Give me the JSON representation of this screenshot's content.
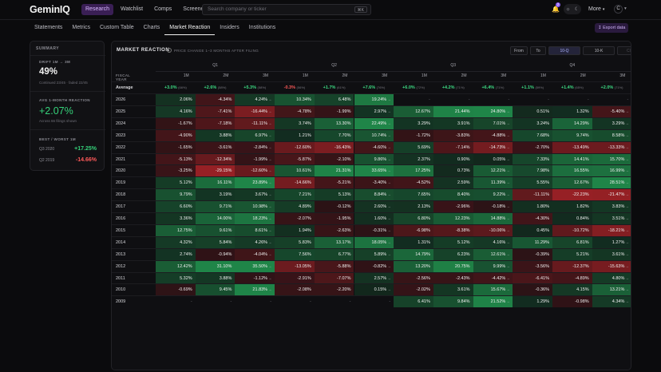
{
  "brand": {
    "name": "GeminIQ"
  },
  "nav": {
    "items": [
      {
        "label": "Research",
        "active": true
      },
      {
        "label": "Watchlist",
        "active": false
      },
      {
        "label": "Comps",
        "active": false
      },
      {
        "label": "Screener",
        "active": false
      }
    ]
  },
  "search": {
    "placeholder": "Search company or ticker",
    "shortcut": "⌘K"
  },
  "header": {
    "notif_count": "2",
    "more_label": "More",
    "avatar": "C"
  },
  "subtabs": [
    {
      "label": "Statements",
      "active": false
    },
    {
      "label": "Metrics",
      "active": false
    },
    {
      "label": "Custom Table",
      "active": false
    },
    {
      "label": "Charts",
      "active": false
    },
    {
      "label": "Market Reaction",
      "active": true
    },
    {
      "label": "Insiders",
      "active": false
    },
    {
      "label": "Institutions",
      "active": false
    }
  ],
  "export_label": "Export data",
  "summary": {
    "title": "SUMMARY",
    "drift_label": "DRIFT 1M → 3M",
    "drift_value": "49%",
    "drift_note": "Continued 23/45 · faded 22/45",
    "avg_label": "AVG 1-MONTH REACTION",
    "avg_value": "+2.07%",
    "avg_note": "Across 66 filings shown",
    "bw_label": "BEST / WORST 1M",
    "best_period": "Q3 2020",
    "best_value": "+17.25%",
    "worst_period": "Q2 2019",
    "worst_value": "-14.66%"
  },
  "panel": {
    "title": "MARKET REACTION",
    "subtitle": "PRICE CHANGE 1–3 MONTHS AFTER FILING",
    "controls": [
      {
        "label": "From",
        "state": "normal"
      },
      {
        "label": "To",
        "state": "normal"
      },
      {
        "label": "10-Q",
        "state": "on"
      },
      {
        "label": "10-K",
        "state": "normal"
      },
      {
        "label": "Clear",
        "state": "dim"
      }
    ],
    "fiscal_year_label": "FISCAL YEAR",
    "quarters": [
      "Q1",
      "Q2",
      "Q3",
      "Q4"
    ],
    "months": [
      "1M",
      "2M",
      "3M"
    ],
    "average": {
      "label": "Average",
      "values": [
        {
          "v": "+3.0%",
          "n": "(66%)",
          "c": "#3ddc84"
        },
        {
          "v": "+2.6%",
          "n": "(58%)",
          "c": "#3ddc84"
        },
        {
          "v": "+5.3%",
          "n": "(58%)",
          "c": "#3ddc84"
        },
        {
          "v": "-0.3%",
          "n": "(56%)",
          "c": "#ff5a5a"
        },
        {
          "v": "+1.7%",
          "n": "(61%)",
          "c": "#3ddc84"
        },
        {
          "v": "+7.6%",
          "n": "(76%)",
          "c": "#3ddc84"
        },
        {
          "v": "+6.0%",
          "n": "(72%)",
          "c": "#3ddc84"
        },
        {
          "v": "+4.2%",
          "n": "(71%)",
          "c": "#3ddc84"
        },
        {
          "v": "+6.4%",
          "n": "(71%)",
          "c": "#3ddc84"
        },
        {
          "v": "+1.1%",
          "n": "(59%)",
          "c": "#3ddc84"
        },
        {
          "v": "+1.4%",
          "n": "(65%)",
          "c": "#3ddc84"
        },
        {
          "v": "+2.0%",
          "n": "(71%)",
          "c": "#3ddc84"
        }
      ]
    },
    "rows": [
      {
        "year": "2026",
        "cells": [
          "2.06%",
          "-4.34%",
          "4.24%",
          "10.34%",
          "6.48%",
          "19.24%",
          "-",
          "-",
          "-",
          "-",
          "-",
          "-"
        ]
      },
      {
        "year": "2025",
        "cells": [
          "4.16%",
          "-7.41%",
          "-16.44%",
          "-4.78%",
          "-1.99%",
          "2.97%",
          "12.67%",
          "21.44%",
          "24.80%",
          "0.51%",
          "1.32%",
          "-5.40%"
        ]
      },
      {
        "year": "2024",
        "cells": [
          "-1.67%",
          "-7.18%",
          "-11.11%",
          "3.74%",
          "13.30%",
          "22.49%",
          "3.29%",
          "3.91%",
          "7.01%",
          "3.24%",
          "14.29%",
          "3.29%"
        ]
      },
      {
        "year": "2023",
        "cells": [
          "-4.90%",
          "3.88%",
          "6.97%",
          "1.21%",
          "7.70%",
          "10.74%",
          "-1.72%",
          "-3.83%",
          "-4.88%",
          "7.68%",
          "9.74%",
          "8.58%"
        ]
      },
      {
        "year": "2022",
        "cells": [
          "-1.65%",
          "-3.61%",
          "-2.84%",
          "-12.60%",
          "-16.43%",
          "-4.60%",
          "5.69%",
          "-7.14%",
          "-14.73%",
          "-2.70%",
          "-13.49%",
          "-13.33%"
        ]
      },
      {
        "year": "2021",
        "cells": [
          "-5.13%",
          "-12.34%",
          "-1.99%",
          "-5.87%",
          "-2.10%",
          "9.86%",
          "2.37%",
          "0.90%",
          "0.05%",
          "7.33%",
          "14.41%",
          "15.70%"
        ]
      },
      {
        "year": "2020",
        "cells": [
          "-3.25%",
          "-29.15%",
          "-12.60%",
          "10.61%",
          "21.31%",
          "33.65%",
          "17.25%",
          "0.73%",
          "12.21%",
          "7.98%",
          "16.55%",
          "16.99%"
        ]
      },
      {
        "year": "2019",
        "cells": [
          "5.12%",
          "16.11%",
          "23.89%",
          "-14.66%",
          "-5.21%",
          "-3.40%",
          "-4.52%",
          "2.59%",
          "11.39%",
          "5.55%",
          "12.67%",
          "28.51%"
        ]
      },
      {
        "year": "2018",
        "cells": [
          "9.79%",
          "3.19%",
          "3.67%",
          "7.21%",
          "5.13%",
          "8.84%",
          "7.65%",
          "8.40%",
          "9.22%",
          "-11.11%",
          "-22.23%",
          "-21.47%"
        ]
      },
      {
        "year": "2017",
        "cells": [
          "6.60%",
          "9.71%",
          "10.98%",
          "4.89%",
          "-0.12%",
          "2.60%",
          "2.13%",
          "-2.96%",
          "-0.18%",
          "1.80%",
          "1.82%",
          "3.83%"
        ]
      },
      {
        "year": "2016",
        "cells": [
          "3.36%",
          "14.00%",
          "18.23%",
          "-2.07%",
          "-1.95%",
          "1.60%",
          "6.80%",
          "12.23%",
          "14.88%",
          "-4.30%",
          "0.84%",
          "3.51%"
        ]
      },
      {
        "year": "2015",
        "cells": [
          "12.75%",
          "9.61%",
          "8.61%",
          "1.94%",
          "-2.63%",
          "-0.31%",
          "-6.98%",
          "-8.38%",
          "-10.06%",
          "0.45%",
          "-10.72%",
          "-18.21%"
        ]
      },
      {
        "year": "2014",
        "cells": [
          "4.32%",
          "5.84%",
          "4.26%",
          "5.83%",
          "13.17%",
          "18.05%",
          "1.31%",
          "5.12%",
          "4.16%",
          "11.29%",
          "6.81%",
          "1.27%"
        ]
      },
      {
        "year": "2013",
        "cells": [
          "2.74%",
          "-0.94%",
          "-4.04%",
          "7.56%",
          "6.77%",
          "5.89%",
          "14.79%",
          "6.23%",
          "12.61%",
          "-0.39%",
          "5.21%",
          "3.61%"
        ]
      },
      {
        "year": "2012",
        "cells": [
          "12.42%",
          "31.10%",
          "35.50%",
          "-13.05%",
          "-5.88%",
          "-0.82%",
          "13.20%",
          "20.75%",
          "9.99%",
          "-3.56%",
          "-12.37%",
          "-15.63%"
        ]
      },
      {
        "year": "2011",
        "cells": [
          "5.32%",
          "3.88%",
          "-1.12%",
          "-2.91%",
          "-7.07%",
          "2.57%",
          "-2.56%",
          "-2.43%",
          "-4.42%",
          "-6.41%",
          "-4.89%",
          "4.80%"
        ]
      },
      {
        "year": "2010",
        "cells": [
          "-0.69%",
          "9.45%",
          "21.83%",
          "-2.08%",
          "-2.20%",
          "0.15%",
          "-2.02%",
          "3.61%",
          "15.67%",
          "-0.36%",
          "4.15%",
          "13.21%"
        ]
      },
      {
        "year": "2009",
        "cells": [
          "-",
          "-",
          "-",
          "-",
          "-",
          "-",
          "6.41%",
          "9.84%",
          "21.52%",
          "1.29%",
          "-0.98%",
          "4.34%"
        ]
      }
    ]
  }
}
